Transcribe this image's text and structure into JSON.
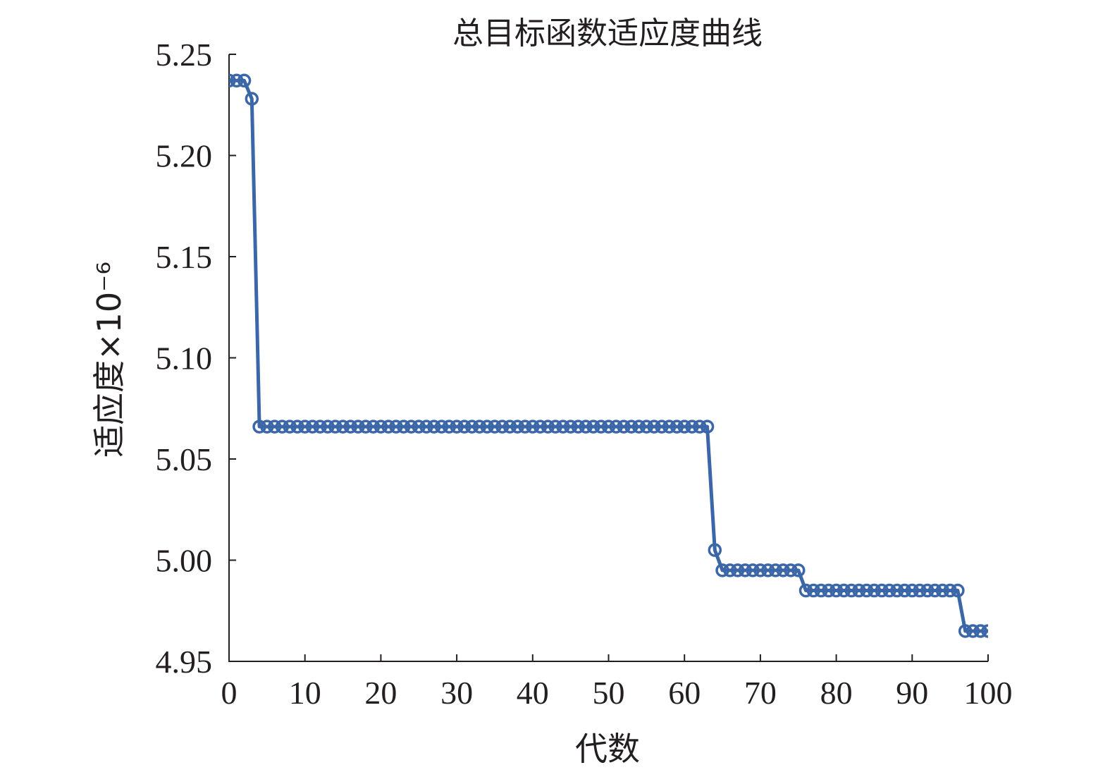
{
  "chart_data": {
    "type": "line",
    "title": "总目标函数适应度曲线",
    "xlabel": "代数",
    "ylabel": "适应度×10⁻⁶",
    "xlim": [
      0,
      100
    ],
    "ylim": [
      4.95,
      5.25
    ],
    "xticks": [
      "0",
      "10",
      "20",
      "30",
      "40",
      "50",
      "60",
      "70",
      "80",
      "90",
      "100"
    ],
    "yticks": [
      "5.25",
      "5.20",
      "5.15",
      "5.10",
      "5.05",
      "5.00",
      "4.95"
    ],
    "grid": false,
    "axis_color": "#231f20",
    "series": [
      {
        "color": "#3b66a8",
        "marker": "circle",
        "x": [
          0,
          1,
          2,
          3,
          4,
          5,
          6,
          7,
          8,
          9,
          10,
          11,
          12,
          13,
          14,
          15,
          16,
          17,
          18,
          19,
          20,
          21,
          22,
          23,
          24,
          25,
          26,
          27,
          28,
          29,
          30,
          31,
          32,
          33,
          34,
          35,
          36,
          37,
          38,
          39,
          40,
          41,
          42,
          43,
          44,
          45,
          46,
          47,
          48,
          49,
          50,
          51,
          52,
          53,
          54,
          55,
          56,
          57,
          58,
          59,
          60,
          61,
          62,
          63,
          64,
          65,
          66,
          67,
          68,
          69,
          70,
          71,
          72,
          73,
          74,
          75,
          76,
          77,
          78,
          79,
          80,
          81,
          82,
          83,
          84,
          85,
          86,
          87,
          88,
          89,
          90,
          91,
          92,
          93,
          94,
          95,
          96,
          97,
          98,
          99,
          100
        ],
        "y": [
          5.237,
          5.237,
          5.237,
          5.228,
          5.066,
          5.066,
          5.066,
          5.066,
          5.066,
          5.066,
          5.066,
          5.066,
          5.066,
          5.066,
          5.066,
          5.066,
          5.066,
          5.066,
          5.066,
          5.066,
          5.066,
          5.066,
          5.066,
          5.066,
          5.066,
          5.066,
          5.066,
          5.066,
          5.066,
          5.066,
          5.066,
          5.066,
          5.066,
          5.066,
          5.066,
          5.066,
          5.066,
          5.066,
          5.066,
          5.066,
          5.066,
          5.066,
          5.066,
          5.066,
          5.066,
          5.066,
          5.066,
          5.066,
          5.066,
          5.066,
          5.066,
          5.066,
          5.066,
          5.066,
          5.066,
          5.066,
          5.066,
          5.066,
          5.066,
          5.066,
          5.066,
          5.066,
          5.066,
          5.066,
          5.005,
          4.995,
          4.995,
          4.995,
          4.995,
          4.995,
          4.995,
          4.995,
          4.995,
          4.995,
          4.995,
          4.995,
          4.985,
          4.985,
          4.985,
          4.985,
          4.985,
          4.985,
          4.985,
          4.985,
          4.985,
          4.985,
          4.985,
          4.985,
          4.985,
          4.985,
          4.985,
          4.985,
          4.985,
          4.985,
          4.985,
          4.985,
          4.985,
          4.965,
          4.965,
          4.965,
          4.965
        ]
      }
    ]
  }
}
